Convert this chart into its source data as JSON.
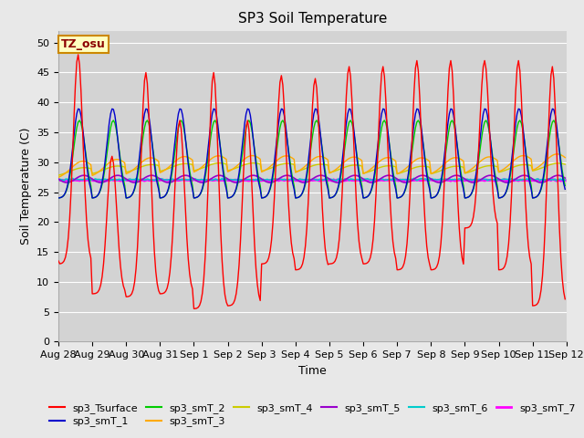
{
  "title": "SP3 Soil Temperature",
  "ylabel": "Soil Temperature (C)",
  "xlabel": "Time",
  "tz_label": "TZ_osu",
  "ylim": [
    0,
    52
  ],
  "yticks": [
    0,
    5,
    10,
    15,
    20,
    25,
    30,
    35,
    40,
    45,
    50
  ],
  "n_days": 15,
  "hours_per_day": 24,
  "series_colors": {
    "sp3_Tsurface": "#ff0000",
    "sp3_smT_1": "#0000cc",
    "sp3_smT_2": "#00cc00",
    "sp3_smT_3": "#ffaa00",
    "sp3_smT_4": "#cccc00",
    "sp3_smT_5": "#9900cc",
    "sp3_smT_6": "#00cccc",
    "sp3_smT_7": "#ff00ff"
  },
  "background_color": "#e8e8e8",
  "plot_bg_color": "#d3d3d3",
  "grid_color": "#ffffff",
  "title_fontsize": 11,
  "axis_label_fontsize": 9,
  "tick_label_fontsize": 8,
  "legend_fontsize": 8
}
